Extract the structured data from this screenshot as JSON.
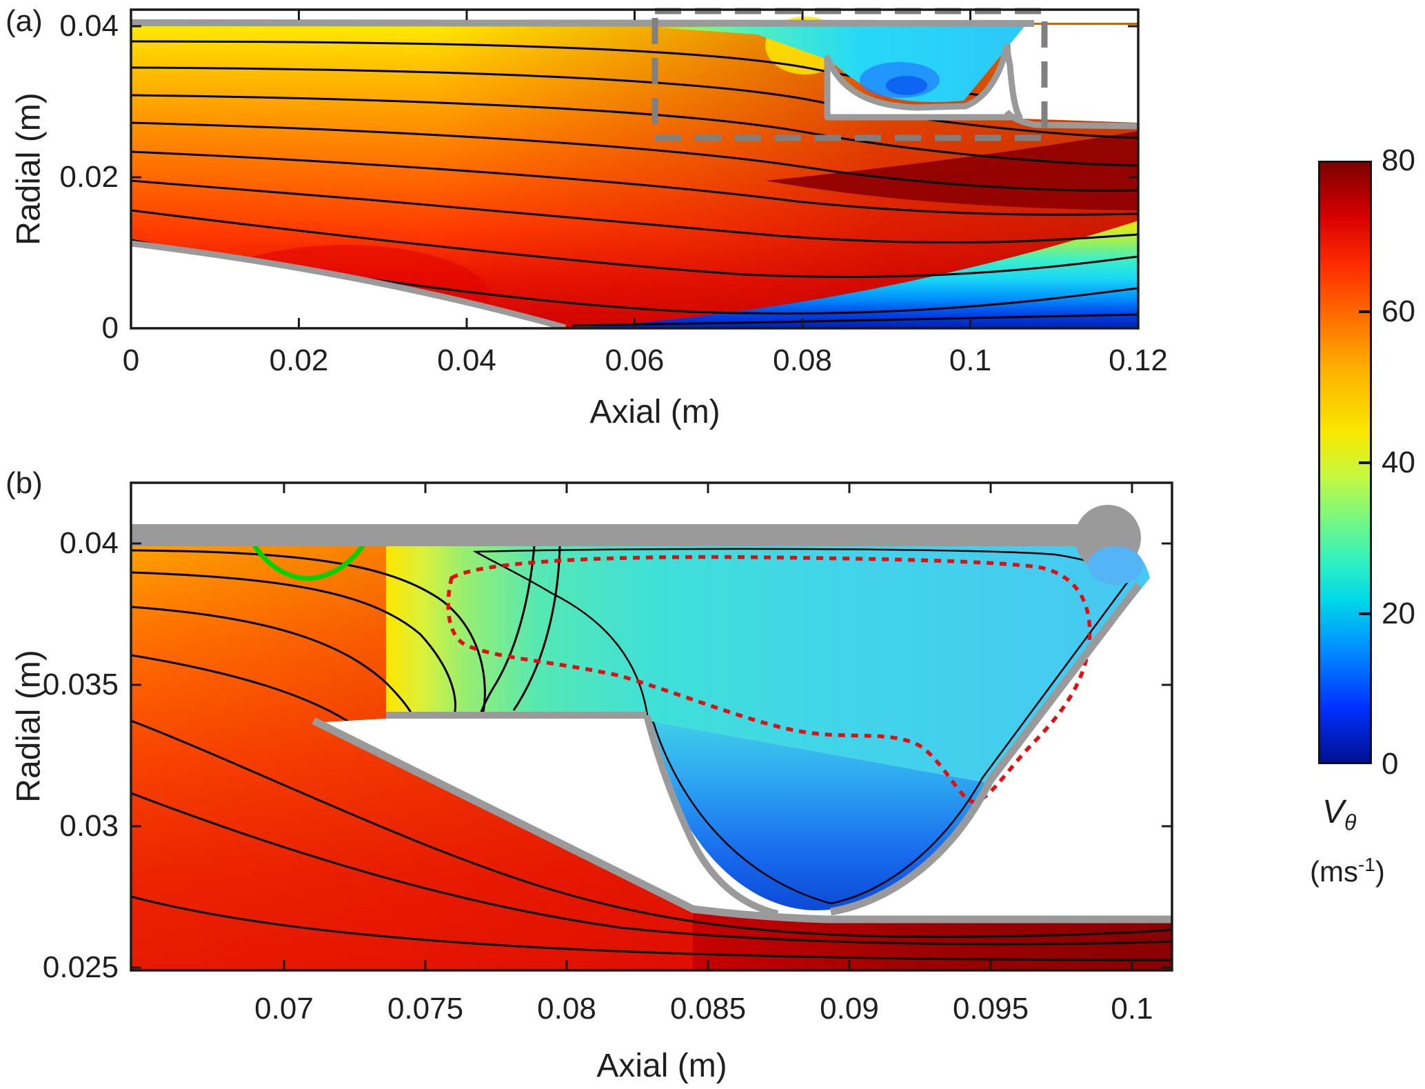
{
  "figure": {
    "description": "Contours of swirl velocity with streamlines in a swirler/cavity geometry; panel (b) is a zoom of the dashed box in panel (a)",
    "background": "#ffffff"
  },
  "panel_a": {
    "label": "(a)",
    "xlabel": "Axial (m)",
    "ylabel": "Radial (m)",
    "x_tick_labels": [
      "0",
      "0.02",
      "0.04",
      "0.06",
      "0.08",
      "0.1",
      "0.12"
    ],
    "y_tick_labels": [
      "0.04",
      "0.02",
      "0"
    ]
  },
  "panel_b": {
    "label": "(b)",
    "xlabel": "Axial (m)",
    "ylabel": "Radial (m)",
    "x_tick_labels": [
      "0.07",
      "0.075",
      "0.08",
      "0.085",
      "0.09",
      "0.095",
      "0.1"
    ],
    "y_tick_labels": [
      "0.04",
      "0.035",
      "0.03",
      "0.025"
    ]
  },
  "colorbar": {
    "tick_labels": [
      "80",
      "60",
      "40",
      "20",
      "0"
    ],
    "title_main": "V",
    "title_sub": "θ",
    "unit_prefix": "(ms",
    "unit_sup": "-1",
    "unit_suffix": ")"
  },
  "chart_data": [
    {
      "type": "heatmap",
      "panel": "(a)",
      "title": "",
      "xlabel": "Axial (m)",
      "ylabel": "Radial (m)",
      "xlim": [
        0,
        0.12
      ],
      "ylim": [
        0,
        0.042
      ],
      "x_ticks": [
        0,
        0.02,
        0.04,
        0.06,
        0.08,
        0.1,
        0.12
      ],
      "y_ticks": [
        0,
        0.02,
        0.04
      ],
      "field": "swirl velocity V_theta (m/s), jet colormap, range 0-80",
      "features": [
        "yellow-orange high-swirl annulus flow upstream (V~45-60)",
        "deep red region V~70-80 near centerbody nose and along lower right channel",
        "low-swirl blue layer V~0-15 along axis downstream of centerbody nose at x>0.03",
        "cyan low-swirl recirculation cavity near shroud at x=0.075-0.1, r=0.037-0.041",
        "white solid regions: centerbody (bottom left) and cavity lip",
        "nine black streamlines bending toward axis after area change",
        "gray dashed rectangle x=0.063-0.109, r=0.026-0.041 marking panel (b) zoom region"
      ],
      "grid": false,
      "legend": "none"
    },
    {
      "type": "heatmap",
      "panel": "(b)",
      "title": "",
      "xlabel": "Axial (m)",
      "ylabel": "Radial (m)",
      "xlim": [
        0.0646,
        0.1014
      ],
      "ylim": [
        0.025,
        0.0421
      ],
      "x_ticks": [
        0.07,
        0.075,
        0.08,
        0.085,
        0.09,
        0.095,
        0.1
      ],
      "y_ticks": [
        0.025,
        0.03,
        0.035,
        0.04
      ],
      "field": "swirl velocity V_theta (m/s), jet colormap, range 0-80 (zoom of dashed box in panel a)",
      "features": [
        "red-orange main flow V~60-75 on left, turning down along hub wall",
        "dark red channel V~80 along bottom right duct",
        "green-cyan recirculation wedge V~25-40 under shroud wall",
        "blue bowl V~10-20 inside slot cavity",
        "white slot between step and hub wall",
        "thin black recirculation streamline loop",
        "red dashed contour enclosing recirculation core",
        "short green contour segment near x=0.069-0.073 at r~0.0405"
      ],
      "overlay_colors": {
        "recirculation_contour": "#e01010",
        "green_contour": "#00d400",
        "streamlines": "#000000",
        "walls": "#9a9a9a",
        "zoom_box": "#808080"
      },
      "grid": false,
      "legend": "none"
    },
    {
      "type": "colorbar",
      "title": "V_theta (ms^-1)",
      "colormap": "jet",
      "range": [
        0,
        80
      ],
      "ticks": [
        0,
        20,
        40,
        60,
        80
      ]
    }
  ]
}
